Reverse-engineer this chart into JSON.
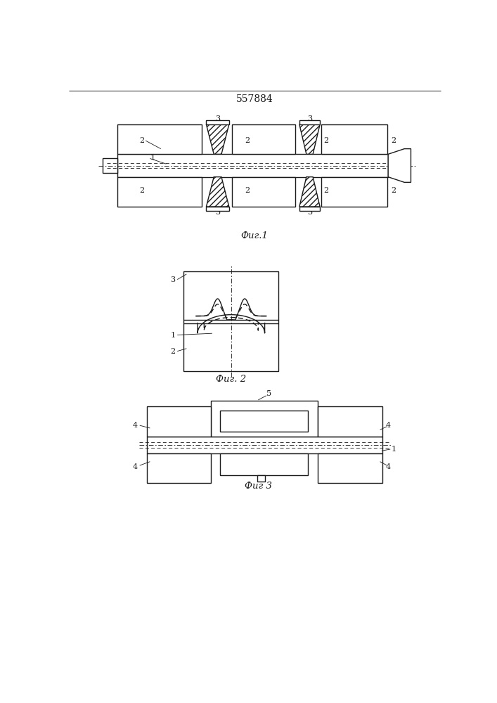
{
  "title": "557884",
  "fig1_caption": "Фиг.1",
  "fig2_caption": "Фиг. 2",
  "fig3_caption": "Фиг 3",
  "bg_color": "#ffffff",
  "line_color": "#1a1a1a",
  "lw": 1.0,
  "lw_thin": 0.6,
  "label_fs": 8.5,
  "title_fs": 10,
  "caption_fs": 9.5
}
